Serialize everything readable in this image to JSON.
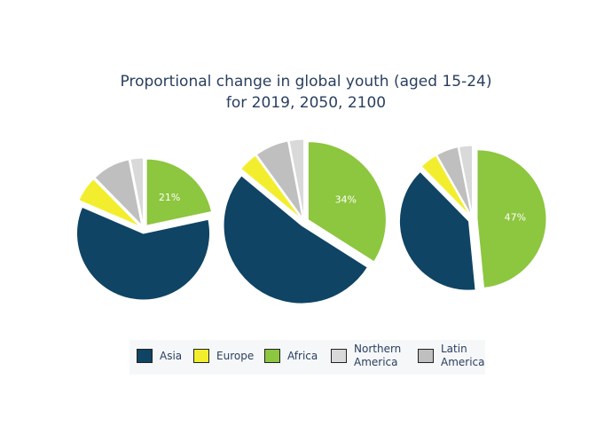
{
  "title_line1": "Proportional change in global youth (aged 15-24)",
  "title_line2": "for 2019, 2050, 2100",
  "colors": {
    "Asia": "#0f4464",
    "Europe": "#f2ee2e",
    "Africa": "#8dc63f",
    "Northern America": "#d9d9d9",
    "Latin America": "#bfbfbf"
  },
  "legend": [
    {
      "key": "Asia",
      "line1": "Asia",
      "line2": ""
    },
    {
      "key": "Europe",
      "line1": "Europe",
      "line2": ""
    },
    {
      "key": "Africa",
      "line1": "Africa",
      "line2": ""
    },
    {
      "key": "Northern America",
      "line1": "Northern",
      "line2": "America"
    },
    {
      "key": "Latin America",
      "line1": "Latin",
      "line2": "America"
    }
  ],
  "chart_data": [
    {
      "type": "pie",
      "year": "2019",
      "labeled_slice": "Africa",
      "label_text": "21%",
      "slices": [
        {
          "name": "Africa",
          "value": 21
        },
        {
          "name": "Asia",
          "value": 58
        },
        {
          "name": "Europe",
          "value": 6
        },
        {
          "name": "Latin America",
          "value": 9
        },
        {
          "name": "Northern America",
          "value": 3
        }
      ]
    },
    {
      "type": "pie",
      "year": "2050",
      "labeled_slice": "Africa",
      "label_text": "34%",
      "slices": [
        {
          "name": "Africa",
          "value": 34
        },
        {
          "name": "Asia",
          "value": 52
        },
        {
          "name": "Europe",
          "value": 4
        },
        {
          "name": "Latin America",
          "value": 7
        },
        {
          "name": "Northern America",
          "value": 3
        }
      ]
    },
    {
      "type": "pie",
      "year": "2100",
      "labeled_slice": "Africa",
      "label_text": "47%",
      "slices": [
        {
          "name": "Africa",
          "value": 47
        },
        {
          "name": "Asia",
          "value": 38
        },
        {
          "name": "Europe",
          "value": 4
        },
        {
          "name": "Latin America",
          "value": 5
        },
        {
          "name": "Northern America",
          "value": 3
        }
      ]
    }
  ]
}
